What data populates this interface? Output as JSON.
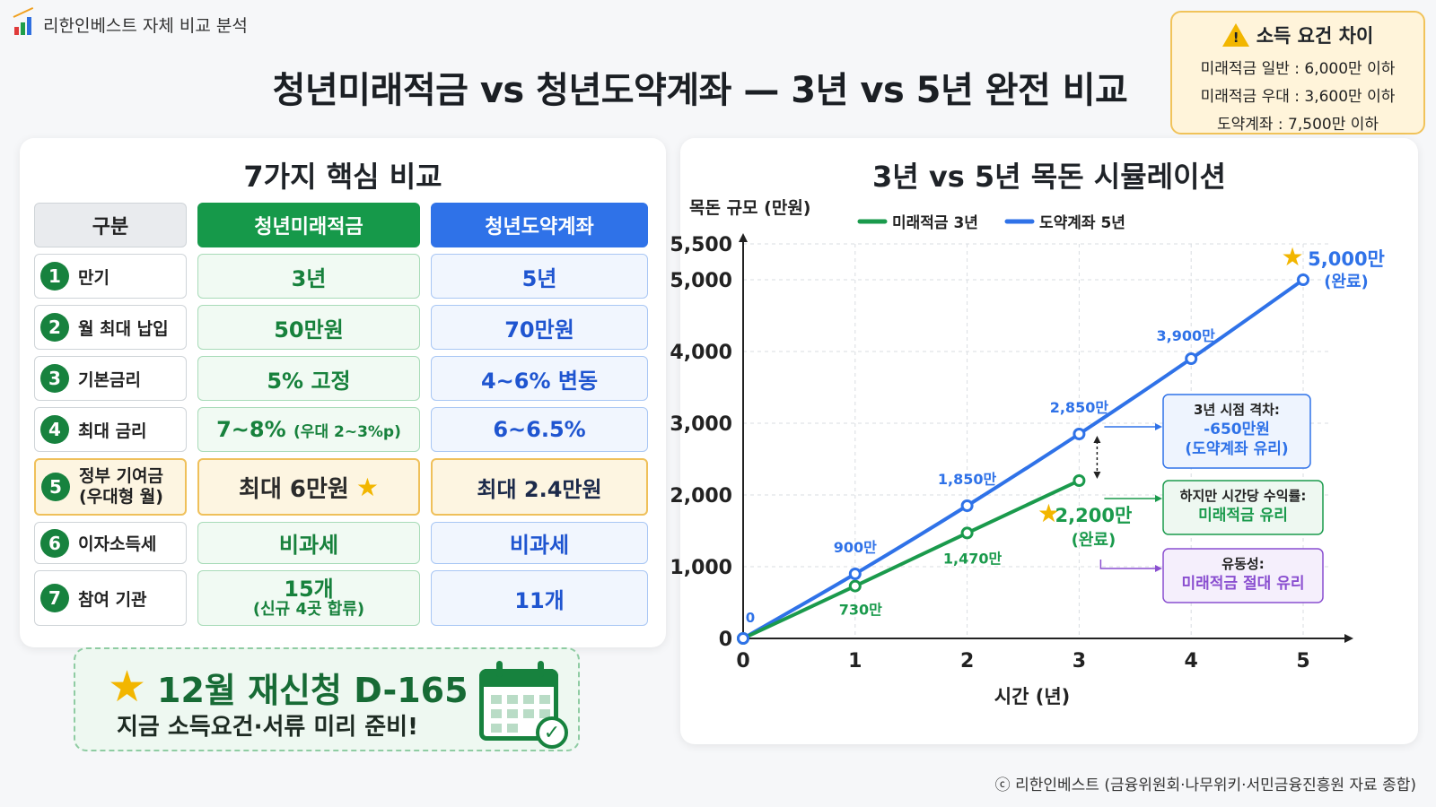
{
  "brand": {
    "name": "리한인베스트 자체 비교 분석",
    "logo_icon": "bar-chart-icon"
  },
  "title": "청년미래적금 vs 청년도약계좌 — 3년 vs 5년 완전 비교",
  "income_box": {
    "title": "소득 요건 차이",
    "icon": "warning-icon",
    "lines": [
      "미래적금 일반 : 6,000만 이하",
      "미래적금 우대 : 3,600만 이하",
      "도약계좌 : 7,500만 이하"
    ]
  },
  "comparison": {
    "title": "7가지 핵심 비교",
    "headers": [
      "구분",
      "청년미래적금",
      "청년도약계좌"
    ],
    "rows": [
      {
        "no": "1",
        "label": "만기",
        "a": "3년",
        "b": "5년"
      },
      {
        "no": "2",
        "label": "월 최대 납입",
        "a": "50만원",
        "b": "70만원"
      },
      {
        "no": "3",
        "label": "기본금리",
        "a": "5% 고정",
        "b": "4~6% 변동"
      },
      {
        "no": "4",
        "label": "최대 금리",
        "a": "7~8%",
        "a_note": "(우대 2~3%p)",
        "b": "6~6.5%"
      },
      {
        "no": "5",
        "label": "정부 기여금",
        "label_sub": "(우대형 월)",
        "a": "최대 6만원",
        "b": "최대 2.4만원",
        "highlight": true
      },
      {
        "no": "6",
        "label": "이자소득세",
        "a": "비과세",
        "b": "비과세"
      },
      {
        "no": "7",
        "label": "참여 기관",
        "a": "15개",
        "a_note": "(신규 4곳 합류)",
        "b": "11개"
      }
    ]
  },
  "dday": {
    "main": "12월 재신청 D-165",
    "sub": "지금 소득요건·서류 미리 준비!",
    "icon": "calendar-check-icon"
  },
  "chart_data": {
    "type": "line",
    "title": "3년 vs 5년 목돈 시뮬레이션",
    "xlabel": "시간 (년)",
    "ylabel": "목돈 규모 (만원)",
    "x_ticks": [
      "0",
      "1",
      "2",
      "3",
      "4",
      "5"
    ],
    "y_ticks": [
      "0",
      "1,000",
      "2,000",
      "3,000",
      "4,000",
      "5,000",
      "5,500"
    ],
    "ylim": [
      0,
      5500
    ],
    "legend_position": "top",
    "grid": true,
    "series": [
      {
        "name": "미래적금 3년",
        "color": "#1a9a4c",
        "x": [
          0,
          1,
          2,
          3
        ],
        "values": [
          0,
          730,
          1470,
          2200
        ],
        "labels": [
          "",
          "730만",
          "1,470만",
          "2,200만"
        ]
      },
      {
        "name": "도약계좌 5년",
        "color": "#2f72e8",
        "x": [
          0,
          1,
          2,
          3,
          4,
          5
        ],
        "values": [
          0,
          900,
          1850,
          2850,
          3900,
          5000
        ],
        "labels": [
          "0",
          "900만",
          "1,850만",
          "2,850만",
          "3,900만",
          "5,000만"
        ]
      }
    ],
    "end_note": "(완료)",
    "annotations": [
      {
        "title": "3년 시점 격차:",
        "value": "-650만원",
        "note": "(도약계좌 유리)",
        "color": "#2f72e8"
      },
      {
        "title": "하지만 시간당 수익률:",
        "value": "미래적금 유리",
        "color": "#1a9a4c"
      },
      {
        "title": "유동성:",
        "value": "미래적금 절대 유리",
        "color": "#8a4fd0"
      }
    ]
  },
  "footer": "ⓒ 리한인베스트 (금융위원회·나무위키·서민금융진흥원 자료 종합)"
}
